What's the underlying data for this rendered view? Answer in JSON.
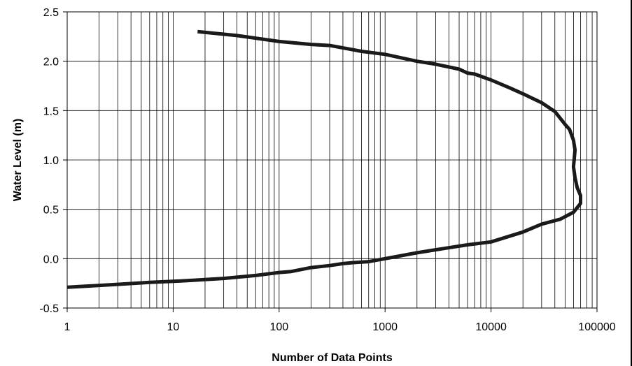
{
  "chart_data": {
    "type": "line",
    "title": "",
    "xlabel": "Number of Data Points",
    "ylabel": "Water Level (m)",
    "x_scale": "log",
    "xlim": [
      1,
      100000
    ],
    "ylim": [
      -0.5,
      2.5
    ],
    "x_ticks": [
      "1",
      "10",
      "100",
      "1000",
      "10000",
      "100000"
    ],
    "y_ticks": [
      "2.5",
      "2.0",
      "1.5",
      "1.0",
      "0.5",
      "0.0",
      "-0.5"
    ],
    "y_tick_values": [
      2.5,
      2.0,
      1.5,
      1.0,
      0.5,
      0.0,
      -0.5
    ],
    "grid": true,
    "line_color": "#1a1a1a",
    "series": [
      {
        "x": [
          17,
          40,
          100,
          200,
          300,
          600,
          1000,
          2000,
          3000,
          5000,
          6000,
          7000,
          10000,
          15000,
          20000,
          30000,
          40000,
          50000,
          55000,
          60000,
          62000,
          60000,
          62000,
          65000,
          70000,
          70000,
          60000,
          45000,
          30000,
          20000,
          10000,
          6000,
          3000,
          2000,
          1000,
          700,
          500,
          400,
          300,
          200,
          130,
          100,
          60,
          30,
          15,
          10,
          6,
          3,
          1
        ],
        "y": [
          2.3,
          2.26,
          2.2,
          2.17,
          2.16,
          2.1,
          2.07,
          2.0,
          1.97,
          1.92,
          1.88,
          1.87,
          1.81,
          1.73,
          1.67,
          1.58,
          1.49,
          1.36,
          1.31,
          1.2,
          1.1,
          0.93,
          0.82,
          0.72,
          0.64,
          0.56,
          0.47,
          0.4,
          0.35,
          0.27,
          0.17,
          0.14,
          0.09,
          0.06,
          0.0,
          -0.03,
          -0.04,
          -0.05,
          -0.07,
          -0.09,
          -0.13,
          -0.14,
          -0.17,
          -0.2,
          -0.22,
          -0.23,
          -0.24,
          -0.26,
          -0.29
        ]
      }
    ]
  }
}
